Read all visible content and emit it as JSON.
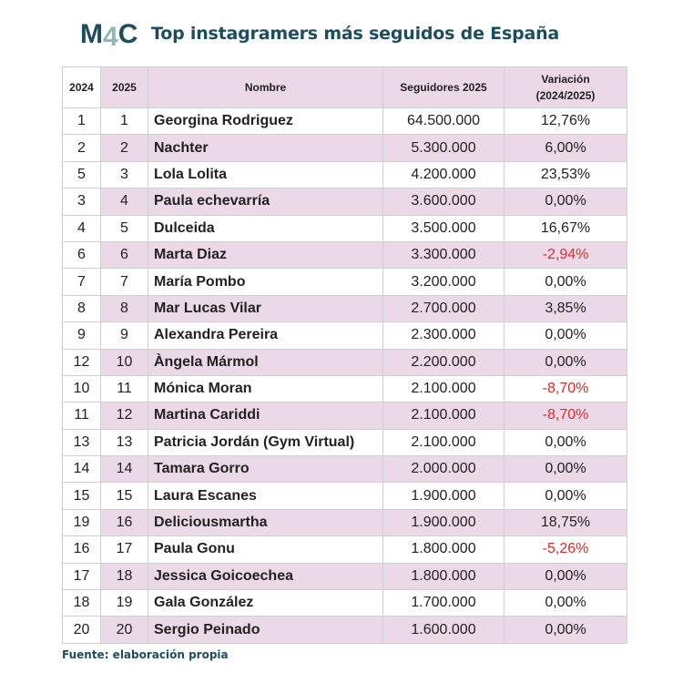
{
  "logo_text": "M4C",
  "title": "Top instagramers más seguidos de España",
  "table": {
    "headers": [
      "2024",
      "2025",
      "Nombre",
      "Seguidores 2025",
      "Variación (2024/2025)"
    ],
    "rows": [
      [
        "1",
        "1",
        "Georgina Rodriguez",
        "64.500.000",
        "12,76%"
      ],
      [
        "2",
        "2",
        "Nachter",
        "5.300.000",
        "6,00%"
      ],
      [
        "5",
        "3",
        "Lola Lolita",
        "4.200.000",
        "23,53%"
      ],
      [
        "3",
        "4",
        "Paula echevarría",
        "3.600.000",
        "0,00%"
      ],
      [
        "4",
        "5",
        "Dulceida",
        "3.500.000",
        "16,67%"
      ],
      [
        "6",
        "6",
        "Marta Diaz",
        "3.300.000",
        "-2,94%"
      ],
      [
        "7",
        "7",
        "María Pombo",
        "3.200.000",
        "0,00%"
      ],
      [
        "8",
        "8",
        "Mar Lucas Vilar",
        "2.700.000",
        "3,85%"
      ],
      [
        "9",
        "9",
        "Alexandra Pereira",
        "2.300.000",
        "0,00%"
      ],
      [
        "12",
        "10",
        "Àngela Mármol",
        "2.200.000",
        "0,00%"
      ],
      [
        "10",
        "11",
        "Mónica Moran",
        "2.100.000",
        "-8,70%"
      ],
      [
        "11",
        "12",
        "Martina Cariddi",
        "2.100.000",
        "-8,70%"
      ],
      [
        "13",
        "13",
        "Patricia Jordán (Gym Virtual)",
        "2.100.000",
        "0,00%"
      ],
      [
        "14",
        "14",
        "Tamara Gorro",
        "2.000.000",
        "0,00%"
      ],
      [
        "15",
        "15",
        "Laura Escanes",
        "1.900.000",
        "0,00%"
      ],
      [
        "19",
        "16",
        "Deliciousmartha",
        "1.900.000",
        "18,75%"
      ],
      [
        "16",
        "17",
        "Paula Gonu",
        "1.800.000",
        "-5,26%"
      ],
      [
        "17",
        "18",
        "Jessica Goicoechea",
        "1.800.000",
        "0,00%"
      ],
      [
        "18",
        "19",
        "Gala González",
        "1.700.000",
        "0,00%"
      ],
      [
        "20",
        "20",
        "Sergio Peinado",
        "1.600.000",
        "0,00%"
      ]
    ]
  },
  "source": "Fuente: elaboración propia",
  "colors": {
    "brand": "#1c4e5e",
    "row_alt": "#ecd9e8",
    "negative": "#e8262a"
  }
}
